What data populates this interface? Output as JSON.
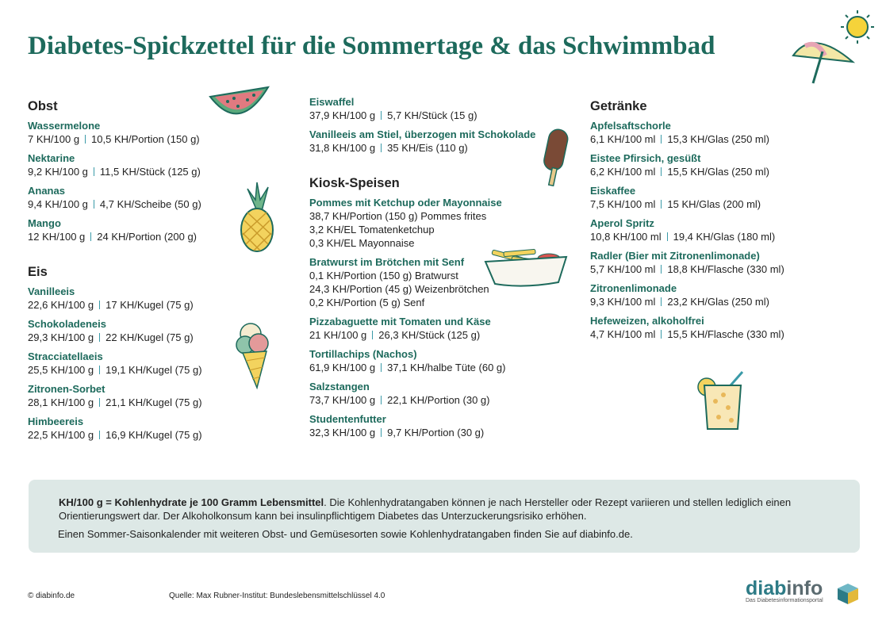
{
  "header": {
    "title": "Diabetes-Spickzettel für die Sommertage & das Schwimmbad"
  },
  "columns": [
    {
      "sections": [
        {
          "heading": "Obst",
          "items": [
            {
              "name": "Wassermelone",
              "values": [
                "7 KH/100 g",
                "10,5 KH/Portion (150 g)"
              ]
            },
            {
              "name": "Nektarine",
              "values": [
                "9,2 KH/100 g",
                "11,5 KH/Stück (125 g)"
              ]
            },
            {
              "name": "Ananas",
              "values": [
                "9,4 KH/100 g",
                "4,7 KH/Scheibe (50 g)"
              ]
            },
            {
              "name": "Mango",
              "values": [
                "12 KH/100 g",
                "24 KH/Portion (200 g)"
              ]
            }
          ]
        },
        {
          "heading": "Eis",
          "items": [
            {
              "name": "Vanilleeis",
              "values": [
                "22,6 KH/100 g",
                "17 KH/Kugel (75 g)"
              ]
            },
            {
              "name": "Schokoladeneis",
              "values": [
                "29,3 KH/100 g",
                "22 KH/Kugel (75 g)"
              ]
            },
            {
              "name": "Stracciatellaeis",
              "values": [
                "25,5 KH/100 g",
                "19,1 KH/Kugel (75 g)"
              ]
            },
            {
              "name": "Zitronen-Sorbet",
              "values": [
                "28,1 KH/100 g",
                "21,1 KH/Kugel (75 g)"
              ]
            },
            {
              "name": "Himbeereis",
              "values": [
                "22,5 KH/100 g",
                "16,9 KH/Kugel (75 g)"
              ]
            }
          ]
        }
      ]
    },
    {
      "sections": [
        {
          "items": [
            {
              "name": "Eiswaffel",
              "values": [
                "37,9 KH/100 g",
                "5,7 KH/Stück (15 g)"
              ]
            },
            {
              "name": "Vanilleeis am Stiel, überzogen mit Schokolade",
              "values": [
                "31,8 KH/100 g",
                "35 KH/Eis (110 g)"
              ]
            }
          ]
        },
        {
          "heading": "Kiosk-Speisen",
          "items": [
            {
              "name": "Pommes mit Ketchup oder Mayonnaise",
              "lines": [
                "38,7 KH/Portion (150 g) Pommes frites",
                "3,2 KH/EL Tomatenketchup",
                "0,3 KH/EL  Mayonnaise"
              ]
            },
            {
              "name": "Bratwurst im Brötchen mit Senf",
              "lines": [
                "0,1 KH/Portion (150 g) Bratwurst",
                "24,3 KH/Portion (45 g) Weizenbrötchen",
                "0,2 KH/Portion (5 g) Senf"
              ]
            },
            {
              "name": "Pizzabaguette mit Tomaten und Käse",
              "values": [
                "21 KH/100 g",
                "26,3 KH/Stück (125 g)"
              ]
            },
            {
              "name": "Tortillachips (Nachos)",
              "values": [
                "61,9 KH/100 g",
                "37,1 KH/halbe Tüte (60 g)"
              ]
            },
            {
              "name": "Salzstangen",
              "values": [
                "73,7 KH/100 g",
                "22,1 KH/Portion (30 g)"
              ]
            },
            {
              "name": "Studentenfutter",
              "values": [
                "32,3 KH/100 g",
                "9,7 KH/Portion (30 g)"
              ]
            }
          ]
        }
      ]
    },
    {
      "sections": [
        {
          "heading": "Getränke",
          "items": [
            {
              "name": "Apfelsaftschorle",
              "values": [
                "6,1 KH/100 ml",
                "15,3 KH/Glas (250 ml)"
              ]
            },
            {
              "name": "Eistee Pfirsich, gesüßt",
              "values": [
                "6,2 KH/100 ml",
                "15,5 KH/Glas (250 ml)"
              ]
            },
            {
              "name": "Eiskaffee",
              "values": [
                "7,5 KH/100 ml",
                "15 KH/Glas (200 ml)"
              ]
            },
            {
              "name": "Aperol Spritz",
              "values": [
                "10,8 KH/100 ml",
                "19,4 KH/Glas (180 ml)"
              ]
            },
            {
              "name": "Radler (Bier mit Zitronenlimonade)",
              "values": [
                "5,7 KH/100 ml",
                "18,8 KH/Flasche (330 ml)"
              ]
            },
            {
              "name": "Zitronenlimonade",
              "values": [
                "9,3 KH/100 ml",
                "23,2 KH/Glas (250 ml)"
              ]
            },
            {
              "name": "Hefeweizen, alkoholfrei",
              "values": [
                "4,7 KH/100 ml",
                "15,5 KH/Flasche (330 ml)"
              ]
            }
          ]
        }
      ]
    }
  ],
  "info": {
    "bold": "KH/100 g = Kohlenhydrate je 100 Gramm Lebensmittel",
    "text": ". Die Kohlenhydratangaben können je nach Hersteller oder Rezept variieren und stellen lediglich einen Orientierungswert dar. Der Alkoholkonsum kann bei insulinpflichtigem Diabetes das Unterzuckerungsrisiko erhöhen.",
    "note": "Einen Sommer-Saisonkalender mit weiteren Obst- und Gemüsesorten sowie Kohlenhydratangaben finden Sie auf diabinfo.de."
  },
  "footer": {
    "copyright": "© diabinfo.de",
    "source": "Quelle: Max Rubner-Institut: Bundeslebensmittelschlüssel 4.0",
    "logo_a": "diab",
    "logo_b": "info",
    "logo_sub": "Das Diabetesinformationsportal"
  }
}
